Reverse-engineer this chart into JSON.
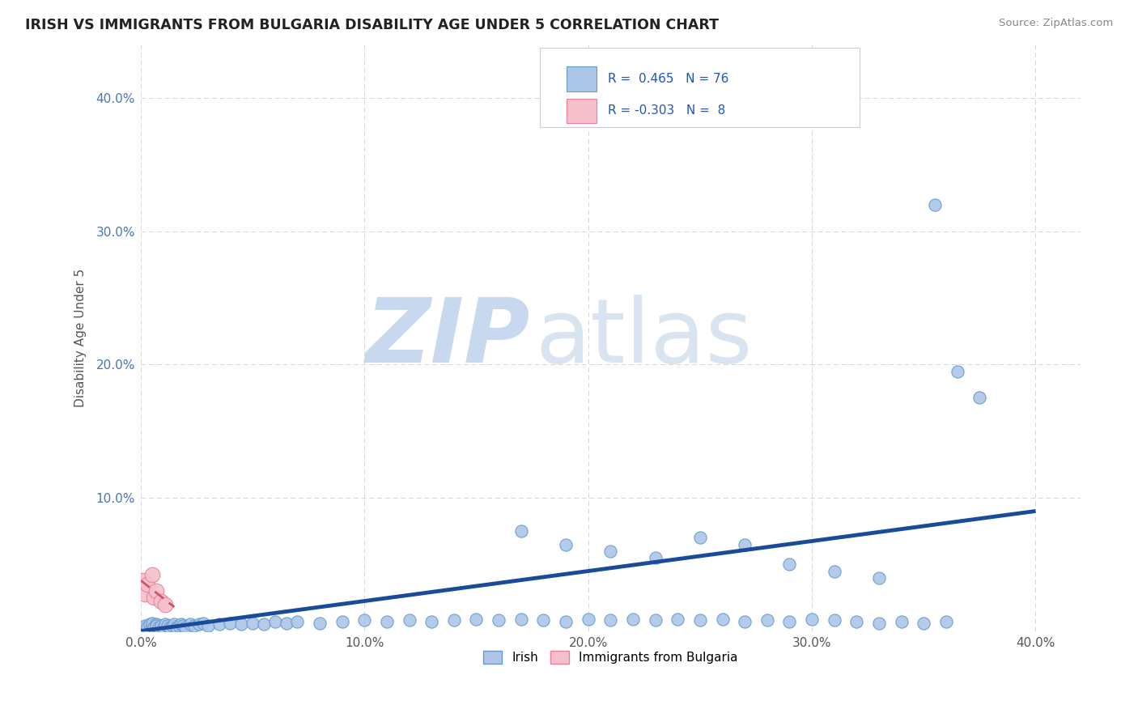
{
  "title": "IRISH VS IMMIGRANTS FROM BULGARIA DISABILITY AGE UNDER 5 CORRELATION CHART",
  "source": "Source: ZipAtlas.com",
  "ylabel": "Disability Age Under 5",
  "xlim": [
    0.0,
    0.42
  ],
  "ylim": [
    0.0,
    0.44
  ],
  "xtick_vals": [
    0.0,
    0.1,
    0.2,
    0.3,
    0.4
  ],
  "ytick_vals": [
    0.0,
    0.1,
    0.2,
    0.3,
    0.4
  ],
  "xtick_labels": [
    "0.0%",
    "10.0%",
    "20.0%",
    "30.0%",
    "40.0%"
  ],
  "ytick_labels": [
    "",
    "10.0%",
    "20.0%",
    "30.0%",
    "40.0%"
  ],
  "irish_R": 0.465,
  "irish_N": 76,
  "bulgaria_R": -0.303,
  "bulgaria_N": 8,
  "irish_color": "#adc6e8",
  "irish_edge_color": "#6699cc",
  "bulgaria_color": "#f5c0cb",
  "bulgaria_edge_color": "#e8809a",
  "trendline_irish_color": "#1a4a9a",
  "trendline_bulgaria_color": "#cc5566",
  "background_color": "#ffffff",
  "watermark_zip": "ZIP",
  "watermark_atlas": "atlas",
  "legend_label_irish": "Irish",
  "legend_label_bulgaria": "Immigrants from Bulgaria",
  "irish_x": [
    0.001,
    0.002,
    0.003,
    0.004,
    0.005,
    0.005,
    0.006,
    0.007,
    0.007,
    0.008,
    0.009,
    0.01,
    0.011,
    0.012,
    0.013,
    0.014,
    0.015,
    0.016,
    0.017,
    0.018,
    0.019,
    0.02,
    0.022,
    0.024,
    0.026,
    0.028,
    0.03,
    0.035,
    0.04,
    0.045,
    0.05,
    0.055,
    0.06,
    0.065,
    0.07,
    0.08,
    0.09,
    0.1,
    0.11,
    0.12,
    0.13,
    0.14,
    0.15,
    0.16,
    0.17,
    0.18,
    0.19,
    0.2,
    0.21,
    0.22,
    0.23,
    0.24,
    0.25,
    0.26,
    0.27,
    0.28,
    0.29,
    0.3,
    0.31,
    0.32,
    0.33,
    0.34,
    0.35,
    0.36,
    0.17,
    0.19,
    0.21,
    0.23,
    0.25,
    0.27,
    0.29,
    0.31,
    0.33,
    0.355,
    0.365,
    0.375
  ],
  "irish_y": [
    0.003,
    0.004,
    0.003,
    0.005,
    0.004,
    0.006,
    0.003,
    0.005,
    0.004,
    0.003,
    0.004,
    0.003,
    0.005,
    0.004,
    0.003,
    0.004,
    0.005,
    0.003,
    0.004,
    0.005,
    0.004,
    0.003,
    0.005,
    0.004,
    0.005,
    0.006,
    0.004,
    0.005,
    0.006,
    0.005,
    0.006,
    0.005,
    0.007,
    0.006,
    0.007,
    0.006,
    0.007,
    0.008,
    0.007,
    0.008,
    0.007,
    0.008,
    0.009,
    0.008,
    0.009,
    0.008,
    0.007,
    0.009,
    0.008,
    0.009,
    0.008,
    0.009,
    0.008,
    0.009,
    0.007,
    0.008,
    0.007,
    0.009,
    0.008,
    0.007,
    0.006,
    0.007,
    0.006,
    0.007,
    0.075,
    0.065,
    0.06,
    0.055,
    0.07,
    0.065,
    0.05,
    0.045,
    0.04,
    0.32,
    0.195,
    0.175
  ],
  "bulgaria_x": [
    0.001,
    0.002,
    0.003,
    0.005,
    0.006,
    0.007,
    0.009,
    0.011
  ],
  "bulgaria_y": [
    0.038,
    0.028,
    0.035,
    0.042,
    0.025,
    0.03,
    0.022,
    0.02
  ]
}
